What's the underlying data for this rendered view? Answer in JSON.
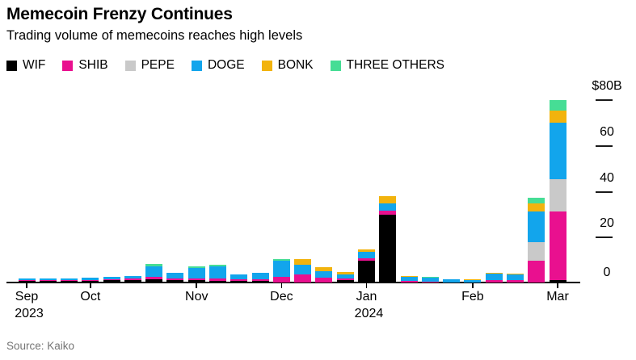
{
  "header": {
    "title": "Memecoin Frenzy Continues",
    "subtitle": "Trading volume of memecoins reaches high levels"
  },
  "footer": {
    "source": "Source: Kaiko"
  },
  "chart_data": {
    "type": "stacked-bar",
    "title": "Memecoin Frenzy Continues",
    "subtitle": "Trading volume of memecoins reaches high levels",
    "unit": "billions USD per week",
    "ylim": [
      0,
      80
    ],
    "legend_position": "top",
    "grid": "right-tick-dashes",
    "y_ticks": [
      {
        "label": "$80B",
        "value": 80
      },
      {
        "label": "60",
        "value": 60
      },
      {
        "label": "40",
        "value": 40
      },
      {
        "label": "20",
        "value": 20
      },
      {
        "label": "0",
        "value": 0
      }
    ],
    "months": [
      {
        "label": "Sep",
        "year": "2023",
        "bar": 0
      },
      {
        "label": "Oct",
        "year": "",
        "bar": 3
      },
      {
        "label": "Nov",
        "year": "",
        "bar": 8
      },
      {
        "label": "Dec",
        "year": "",
        "bar": 12
      },
      {
        "label": "Jan",
        "year": "2024",
        "bar": 16
      },
      {
        "label": "Feb",
        "year": "",
        "bar": 21
      },
      {
        "label": "Mar",
        "year": "",
        "bar": 25
      }
    ],
    "series": [
      {
        "name": "WIF",
        "color": "#000000",
        "values": [
          0.8,
          0.8,
          0.6,
          0.8,
          1.0,
          1.2,
          1.5,
          1.2,
          1.0,
          0.8,
          0.7,
          0.7,
          0,
          0,
          0,
          1.2,
          9.5,
          29.6,
          0,
          0,
          0,
          0,
          0,
          0,
          0,
          1.1
        ]
      },
      {
        "name": "SHIB",
        "color": "#e9108f",
        "values": [
          0.3,
          0.3,
          0.3,
          0.3,
          0.4,
          0.4,
          0.8,
          0.6,
          0.8,
          0.8,
          0.7,
          0.8,
          2.5,
          3.5,
          2.2,
          0.7,
          1.1,
          1.8,
          0.8,
          0.4,
          0,
          0,
          0.9,
          0.9,
          9.5,
          29.9
        ]
      },
      {
        "name": "PEPE",
        "color": "#c9c9c9",
        "values": [
          0,
          0,
          0,
          0,
          0,
          0,
          0,
          0,
          0,
          0,
          0,
          0,
          0,
          0,
          0,
          0,
          0,
          0,
          0,
          0,
          0,
          0,
          0,
          0,
          8.1,
          14.1
        ]
      },
      {
        "name": "DOGE",
        "color": "#12a5ec",
        "values": [
          0.8,
          0.8,
          0.7,
          0.9,
          1.0,
          1.2,
          4.8,
          2.5,
          4.5,
          5.5,
          2.1,
          2.7,
          7.0,
          4.2,
          2.9,
          1.7,
          2.8,
          3.2,
          1.7,
          1.6,
          1.5,
          1.2,
          3.0,
          2.6,
          13.4,
          24.6
        ]
      },
      {
        "name": "BONK",
        "color": "#f2b30d",
        "values": [
          0,
          0,
          0,
          0,
          0,
          0,
          0,
          0,
          0,
          0,
          0,
          0,
          0,
          2.5,
          1.5,
          1.1,
          1.1,
          3.2,
          0.4,
          0,
          0,
          0.2,
          0.4,
          0.3,
          3.5,
          5.3
        ]
      },
      {
        "name": "THREE OTHERS",
        "color": "#46dd95",
        "values": [
          0,
          0,
          0,
          0,
          0,
          0.2,
          1.0,
          0,
          0.7,
          0.7,
          0,
          0,
          0.7,
          0,
          0,
          0,
          0,
          0,
          0,
          0.4,
          0,
          0,
          0,
          0,
          2.5,
          4.6
        ]
      }
    ]
  }
}
